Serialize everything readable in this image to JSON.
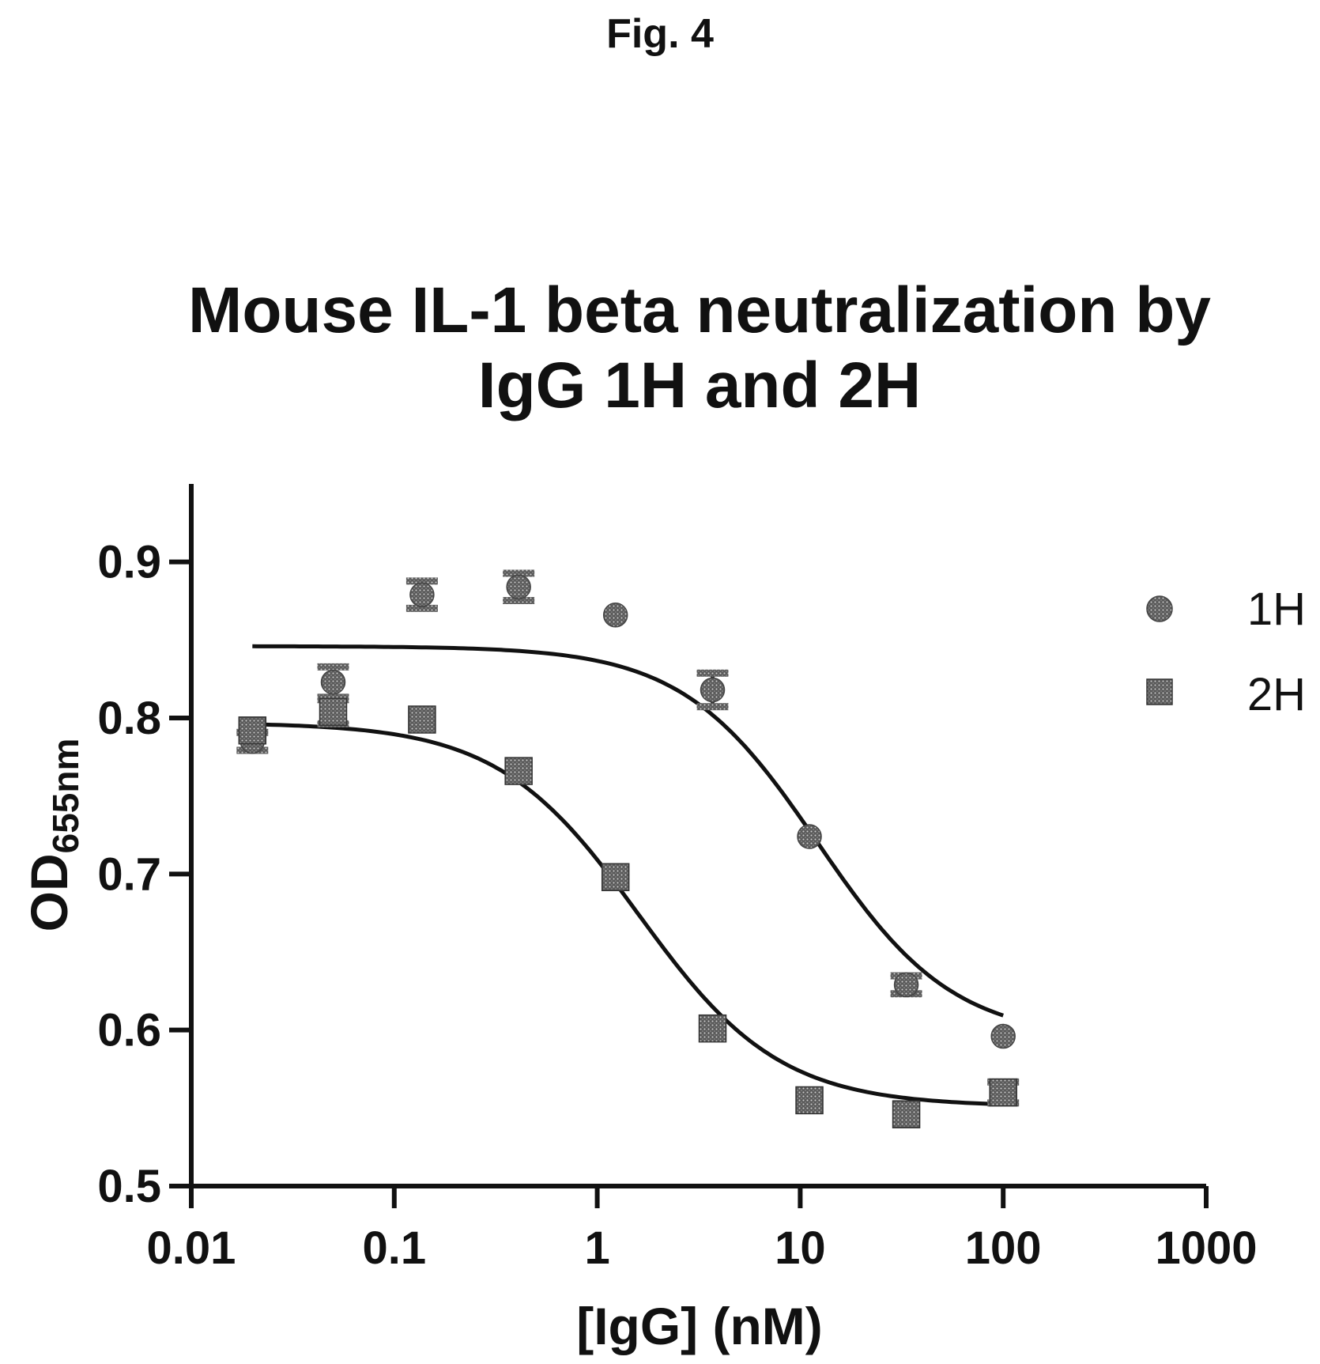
{
  "figure_label": "Fig. 4",
  "colors": {
    "series_1H": "#4a4a4a",
    "series_2H": "#3a3a3a",
    "axis": "#111111"
  },
  "chart_data": {
    "type": "scatter",
    "title_lines": [
      "Mouse IL-1 beta neutralization by",
      "IgG 1H and 2H"
    ],
    "xlabel": "[IgG] (nM)",
    "ylabel": {
      "main": "OD",
      "subscript": "655nm"
    },
    "xscale": "log",
    "xlim": [
      0.01,
      1000
    ],
    "ylim": [
      0.5,
      0.95
    ],
    "x_ticks": [
      0.01,
      0.1,
      1,
      10,
      100,
      1000
    ],
    "x_tick_labels": [
      "0.01",
      "0.1",
      "1",
      "10",
      "100",
      "1000"
    ],
    "y_ticks": [
      0.5,
      0.6,
      0.7,
      0.8,
      0.9
    ],
    "y_tick_labels": [
      "0.5",
      "0.6",
      "0.7",
      "0.8",
      "0.9"
    ],
    "legend_position": "top-right",
    "grid": false,
    "series": [
      {
        "name": "1H",
        "marker": "circle",
        "points": [
          {
            "x": 0.02,
            "y": 0.785,
            "err": 0.006
          },
          {
            "x": 0.05,
            "y": 0.823,
            "err": 0.01
          },
          {
            "x": 0.137,
            "y": 0.879,
            "err": 0.009
          },
          {
            "x": 0.41,
            "y": 0.884,
            "err": 0.009
          },
          {
            "x": 1.23,
            "y": 0.866,
            "err": 0
          },
          {
            "x": 3.7,
            "y": 0.818,
            "err": 0.011
          },
          {
            "x": 11.1,
            "y": 0.724,
            "err": 0
          },
          {
            "x": 33.3,
            "y": 0.629,
            "err": 0.006
          },
          {
            "x": 100,
            "y": 0.596,
            "err": 0
          }
        ],
        "fit": {
          "top": 0.846,
          "bottom": 0.594,
          "ec50": 12.2,
          "hill": 1.3
        }
      },
      {
        "name": "2H",
        "marker": "square",
        "points": [
          {
            "x": 0.02,
            "y": 0.792,
            "err": 0
          },
          {
            "x": 0.05,
            "y": 0.804,
            "err": 0.008
          },
          {
            "x": 0.137,
            "y": 0.799,
            "err": 0
          },
          {
            "x": 0.41,
            "y": 0.766,
            "err": 0
          },
          {
            "x": 1.23,
            "y": 0.698,
            "err": 0
          },
          {
            "x": 3.7,
            "y": 0.601,
            "err": 0
          },
          {
            "x": 11.1,
            "y": 0.555,
            "err": 0
          },
          {
            "x": 33.3,
            "y": 0.546,
            "err": 0
          },
          {
            "x": 100,
            "y": 0.56,
            "err": 0.007
          }
        ],
        "fit": {
          "top": 0.797,
          "bottom": 0.551,
          "ec50": 1.6,
          "hill": 1.25
        }
      }
    ]
  }
}
